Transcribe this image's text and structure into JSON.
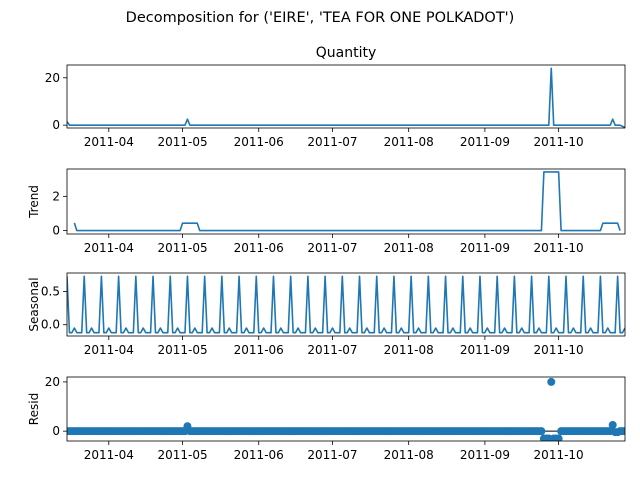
{
  "chart_data": {
    "suptitle": "Decomposition for ('EIRE', 'TEA FOR ONE POLKADOT')",
    "x_tick_labels": [
      "2011-04",
      "2011-05",
      "2011-06",
      "2011-07",
      "2011-08",
      "2011-09",
      "2011-10"
    ],
    "x_range": [
      "2011-03-15",
      "2011-10-28"
    ],
    "series_color": "#1f77b4",
    "panels": [
      {
        "type": "line",
        "title": "Quantity",
        "ylabel": "",
        "y_ticks": [
          "0",
          "20"
        ],
        "ylim": [
          -1.2,
          25.4
        ],
        "points": [
          [
            "2011-03-15",
            1.5
          ],
          [
            "2011-03-16",
            0
          ],
          [
            "2011-05-02",
            0
          ],
          [
            "2011-05-03",
            2.5
          ],
          [
            "2011-05-04",
            0
          ],
          [
            "2011-09-27",
            0
          ],
          [
            "2011-09-28",
            24
          ],
          [
            "2011-09-29",
            0
          ],
          [
            "2011-10-22",
            0
          ],
          [
            "2011-10-23",
            2.5
          ],
          [
            "2011-10-24",
            0
          ],
          [
            "2011-10-26",
            0
          ],
          [
            "2011-10-28",
            -1
          ]
        ]
      },
      {
        "type": "line",
        "title": "",
        "ylabel": "Trend",
        "y_ticks": [
          "0",
          "2"
        ],
        "ylim": [
          -0.2,
          3.6
        ],
        "points": [
          [
            "2011-03-18",
            0.45
          ],
          [
            "2011-03-19",
            0
          ],
          [
            "2011-04-30",
            0
          ],
          [
            "2011-05-01",
            0.43
          ],
          [
            "2011-05-07",
            0.43
          ],
          [
            "2011-05-08",
            0
          ],
          [
            "2011-09-24",
            0
          ],
          [
            "2011-09-25",
            3.43
          ],
          [
            "2011-10-01",
            3.43
          ],
          [
            "2011-10-02",
            0
          ],
          [
            "2011-10-18",
            0
          ],
          [
            "2011-10-19",
            0.43
          ],
          [
            "2011-10-25",
            0.43
          ],
          [
            "2011-10-26",
            0
          ]
        ]
      },
      {
        "type": "line",
        "title": "",
        "ylabel": "Seasonal",
        "y_ticks": [
          "0.0",
          "0.5"
        ],
        "ylim": [
          -0.17,
          0.78
        ],
        "pattern": {
          "start": "2011-03-15",
          "end": "2011-10-28",
          "period_days": 7,
          "weekly_values": [
            0.73,
            -0.12,
            -0.12,
            -0.05,
            -0.12,
            -0.12,
            -0.12
          ]
        }
      },
      {
        "type": "scatter",
        "title": "",
        "ylabel": "Resid",
        "y_ticks": [
          "0",
          "20"
        ],
        "ylim": [
          -4,
          22
        ],
        "baseline": 0,
        "default_value": 0,
        "start": "2011-03-15",
        "end": "2011-10-28",
        "exceptions": [
          [
            "2011-05-03",
            2
          ],
          [
            "2011-09-25",
            -3
          ],
          [
            "2011-09-26",
            -3
          ],
          [
            "2011-09-27",
            -3
          ],
          [
            "2011-09-28",
            20
          ],
          [
            "2011-09-29",
            -3
          ],
          [
            "2011-09-30",
            -3
          ],
          [
            "2011-10-01",
            -3
          ],
          [
            "2011-10-23",
            2.5
          ],
          [
            "2011-10-24",
            -0.4
          ],
          [
            "2011-10-25",
            -0.4
          ]
        ]
      }
    ]
  }
}
